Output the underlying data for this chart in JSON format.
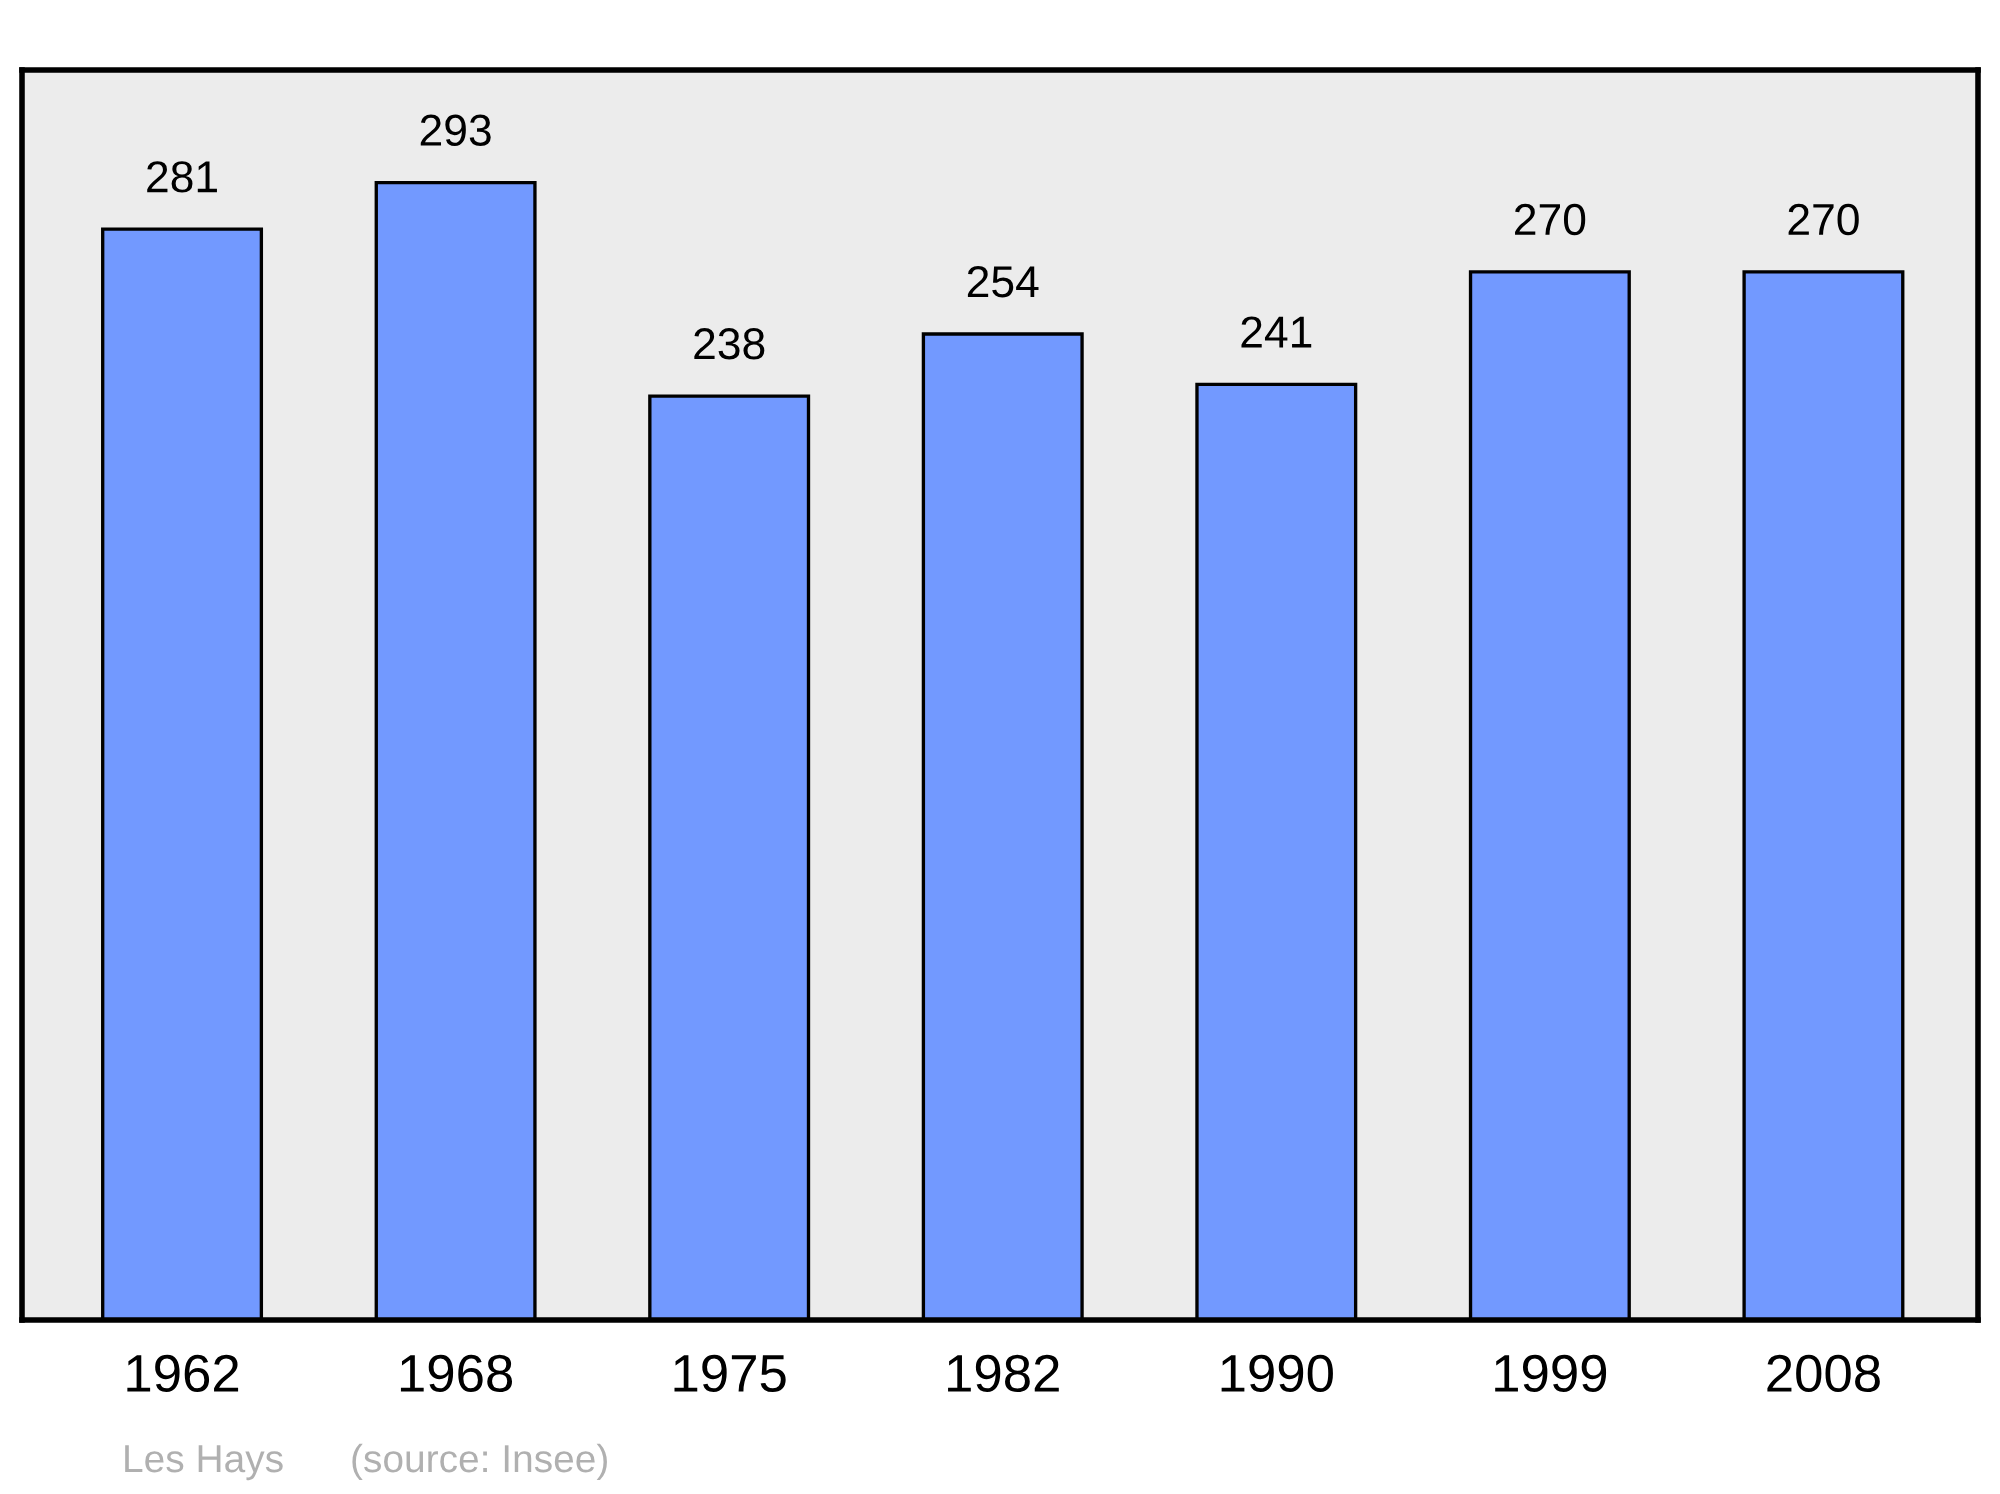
{
  "chart_data": {
    "type": "bar",
    "categories": [
      "1962",
      "1968",
      "1975",
      "1982",
      "1990",
      "1999",
      "2008"
    ],
    "values": [
      281,
      293,
      238,
      254,
      241,
      270,
      270
    ],
    "color": "#7299ff",
    "ylim": [
      0,
      322
    ],
    "tick_labels": "x",
    "data_labels": true,
    "grid": false,
    "legend": false,
    "annotations": [
      "Les Hays",
      "(source: Insee)"
    ]
  }
}
